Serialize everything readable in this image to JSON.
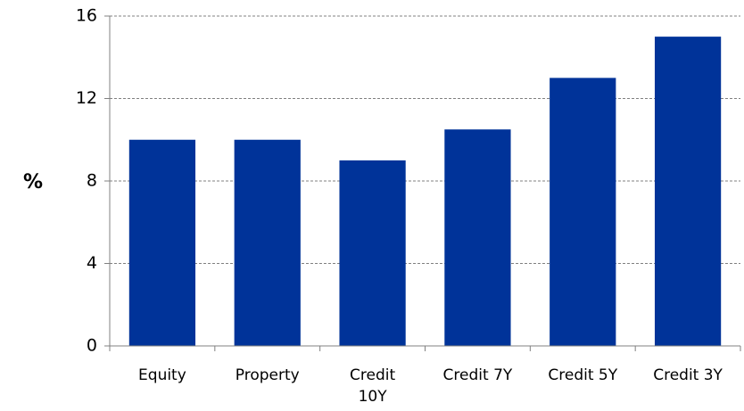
{
  "chart_data": {
    "type": "bar",
    "y_label": "%",
    "categories": [
      "Equity",
      "Property",
      "Credit 10Y",
      "Credit 7Y",
      "Credit 5Y",
      "Credit 3Y"
    ],
    "values": [
      10,
      10,
      9,
      10.5,
      13,
      15
    ],
    "color": "#003399",
    "ylim": [
      0,
      16
    ],
    "yticks": [
      0,
      4,
      8,
      12,
      16
    ],
    "grid": true
  }
}
